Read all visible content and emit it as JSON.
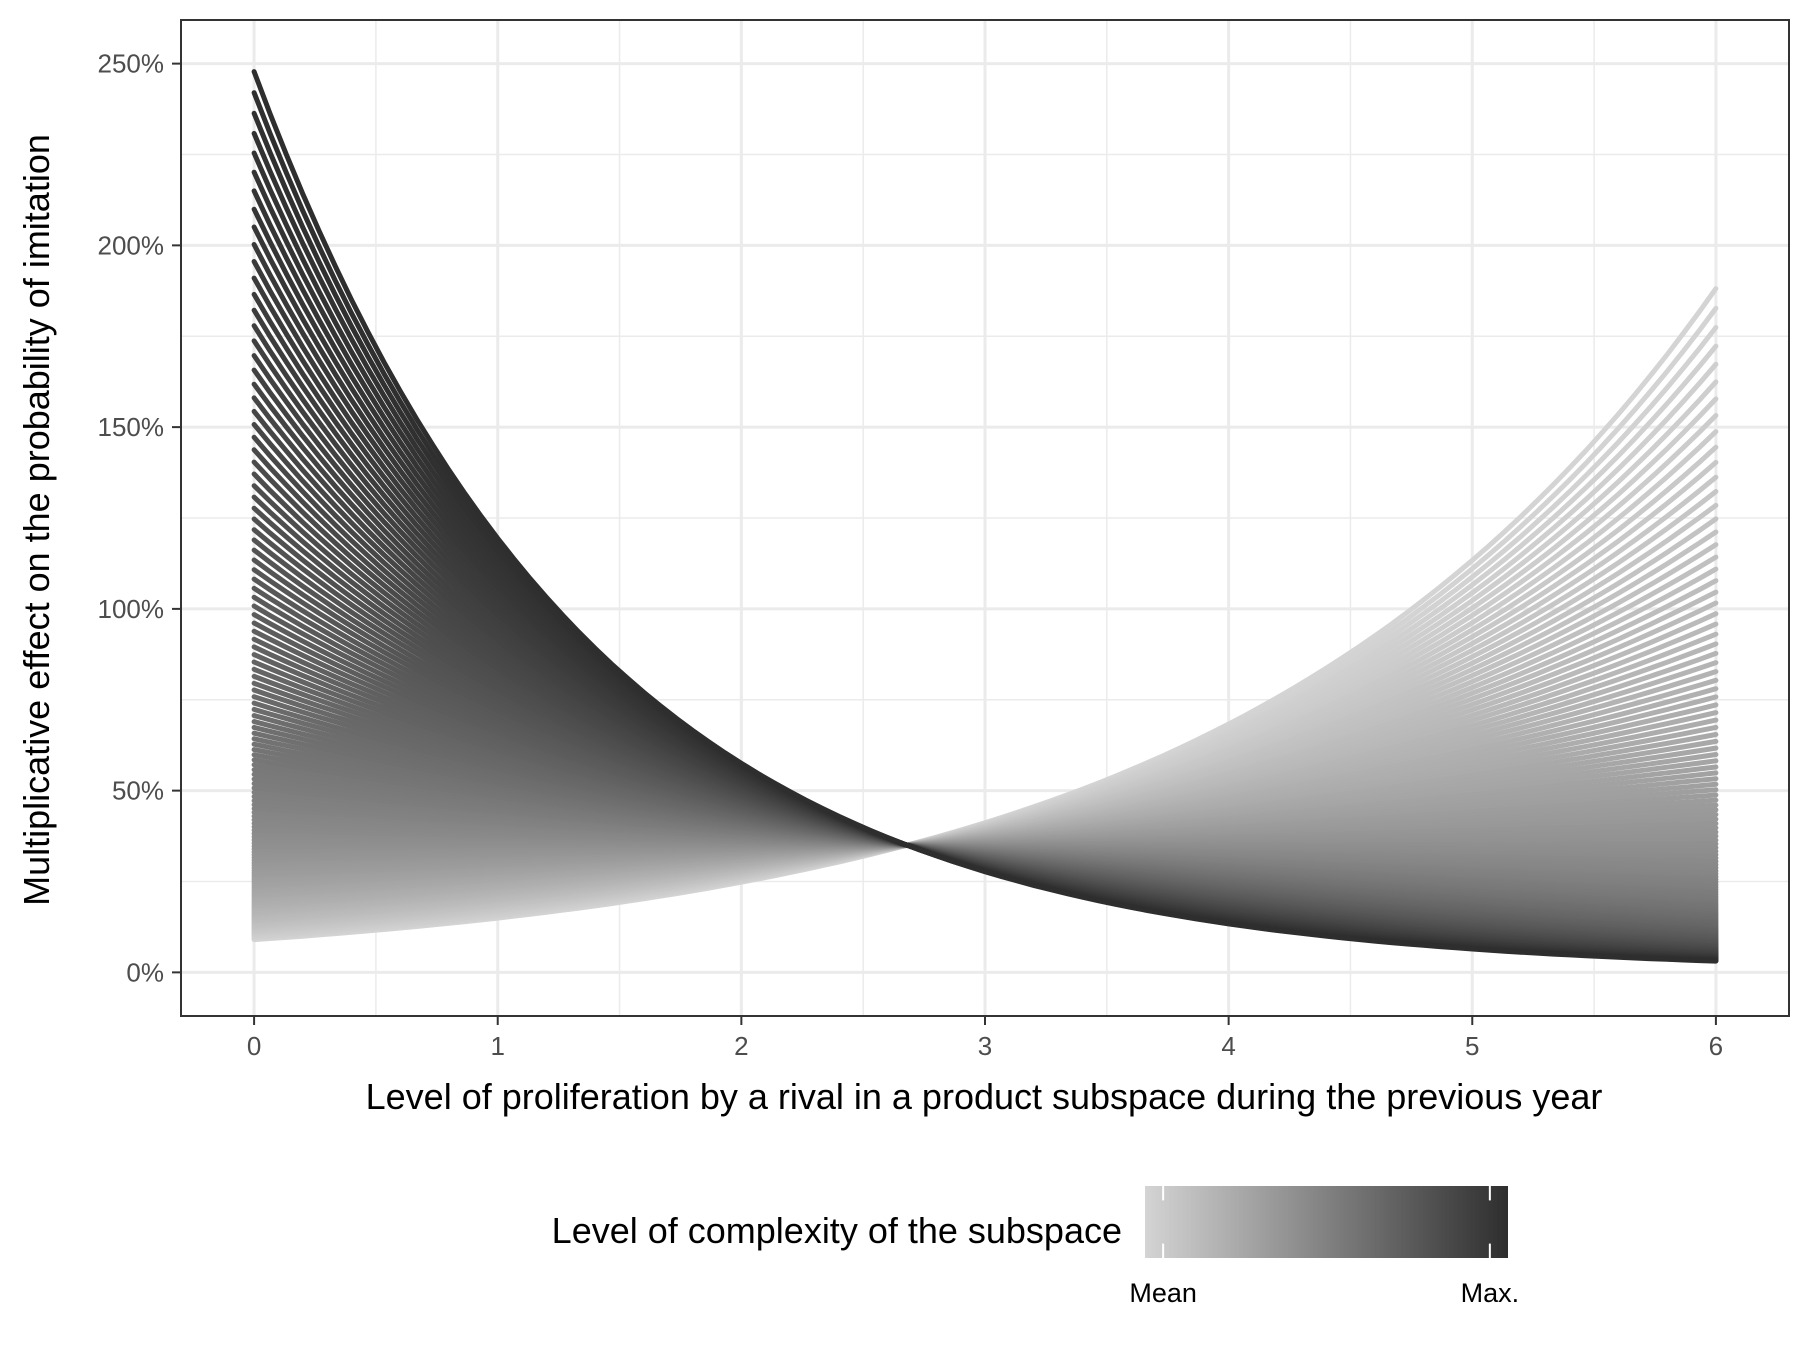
{
  "chart_data": {
    "type": "line",
    "title": "",
    "xlabel": "Level of proliferation by a rival in a product subspace during the previous year",
    "ylabel": "Multiplicative effect on the probability of imitation",
    "xlim": [
      -0.3,
      6.3
    ],
    "ylim": [
      -12,
      262
    ],
    "x_ticks": [
      {
        "value": 0,
        "label": "0"
      },
      {
        "value": 1,
        "label": "1"
      },
      {
        "value": 2,
        "label": "2"
      },
      {
        "value": 3,
        "label": "3"
      },
      {
        "value": 4,
        "label": "4"
      },
      {
        "value": 5,
        "label": "5"
      },
      {
        "value": 6,
        "label": "6"
      }
    ],
    "y_ticks": [
      {
        "value": 0,
        "label": "0%"
      },
      {
        "value": 50,
        "label": "50%"
      },
      {
        "value": 100,
        "label": "100%"
      },
      {
        "value": 150,
        "label": "150%"
      },
      {
        "value": 200,
        "label": "200%"
      },
      {
        "value": 250,
        "label": "250%"
      }
    ],
    "grid": true,
    "crossing_point": {
      "x": 2.68,
      "y": 35
    },
    "series": [
      {
        "complexity": "Mean",
        "x": [
          0,
          1,
          2,
          3,
          4,
          5,
          6
        ],
        "y": [
          9,
          15,
          24,
          41,
          69,
          114,
          188
        ]
      },
      {
        "complexity": "Max.",
        "x": [
          0,
          1,
          2,
          3,
          4,
          5,
          6
        ],
        "y": [
          240,
          120,
          59,
          27,
          13,
          6,
          3
        ]
      }
    ],
    "legend": {
      "title": "Level of complexity of the subspace",
      "position": "bottom",
      "colorbar_colors": [
        "#d4d4d4",
        "#2e2e2e"
      ],
      "labels": [
        {
          "value": 0.05,
          "label": "Mean"
        },
        {
          "value": 0.95,
          "label": "Max."
        }
      ]
    }
  }
}
